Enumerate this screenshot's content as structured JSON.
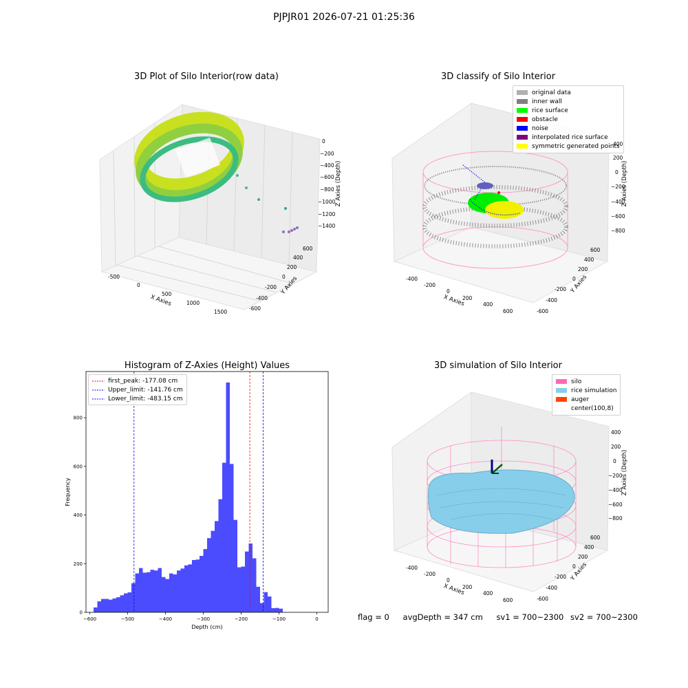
{
  "suptitle": "PJPJR01 2026-07-21 01:25:36",
  "panels": {
    "raw": {
      "title": "3D Plot of Silo Interior(row data)",
      "xlabel": "X Axies",
      "ylabel": "Y Axies",
      "zlabel": "Z Axies (Depth)",
      "xticks": [
        "-500",
        "0",
        "500",
        "1000",
        "1500"
      ],
      "yticks": [
        "-600",
        "-400",
        "-200",
        "0",
        "200",
        "400",
        "600"
      ],
      "zticks": [
        "0",
        "−200",
        "−400",
        "−600",
        "−800",
        "−1000",
        "−1200",
        "−1400"
      ]
    },
    "classify": {
      "title": "3D classify of Silo Interior",
      "xlabel": "X Axies",
      "ylabel": "Y Axies",
      "zlabel": "Z Axies (Depth)",
      "xticks": [
        "-400",
        "-200",
        "0",
        "200",
        "400",
        "600"
      ],
      "yticks": [
        "-600",
        "-400",
        "-200",
        "0",
        "200",
        "400",
        "600"
      ],
      "zticks": [
        "400",
        "200",
        "0",
        "−200",
        "−400",
        "−600",
        "−800"
      ],
      "legend": [
        {
          "label": "original data",
          "color": "#b0b0b0"
        },
        {
          "label": "inner wall",
          "color": "#808080"
        },
        {
          "label": "rice surface",
          "color": "#00ff00"
        },
        {
          "label": "obstacle",
          "color": "#ff0000"
        },
        {
          "label": "noise",
          "color": "#0000ff"
        },
        {
          "label": "interpolated rice surface",
          "color": "#800080"
        },
        {
          "label": "symmetric generated points",
          "color": "#ffff00"
        }
      ]
    },
    "simulation": {
      "title": "3D simulation of Silo Interior",
      "xlabel": "X Axies",
      "ylabel": "Y Axies",
      "zlabel": "Z Axies (Depth)",
      "xticks": [
        "-400",
        "-200",
        "0",
        "200",
        "400",
        "600"
      ],
      "yticks": [
        "-600",
        "-400",
        "-200",
        "0",
        "200",
        "400",
        "600"
      ],
      "zticks": [
        "400",
        "200",
        "0",
        "−200",
        "−400",
        "−600",
        "−800"
      ],
      "legend": [
        {
          "label": "silo",
          "color": "#ff69b4"
        },
        {
          "label": "rice simulation",
          "color": "#87ceeb"
        },
        {
          "label": "auger",
          "color": "#ff4500"
        },
        {
          "label": "center(100,8)",
          "color": "#ffffff"
        }
      ]
    }
  },
  "status": {
    "flag": "flag = 0",
    "avg_depth": "avgDepth = 347 cm",
    "sv1": "sv1 = 700~2300",
    "sv2": "sv2 = 700~2300"
  },
  "chart_data": {
    "type": "bar",
    "title": "Histogram of Z-Axies (Height) Values",
    "xlabel": "Depth (cm)",
    "ylabel": "Frequency",
    "xlim": [
      -610,
      30
    ],
    "ylim": [
      0,
      990
    ],
    "xticks": [
      -600,
      -500,
      -400,
      -300,
      -200,
      -100,
      0
    ],
    "yticks": [
      0,
      200,
      400,
      600,
      800
    ],
    "bar_color": "#0000ff",
    "bin_edges_start": -590,
    "bin_width": 10,
    "values": [
      20,
      45,
      55,
      55,
      52,
      57,
      62,
      70,
      78,
      82,
      120,
      160,
      182,
      163,
      165,
      175,
      172,
      182,
      145,
      137,
      160,
      156,
      172,
      180,
      193,
      197,
      215,
      217,
      232,
      260,
      305,
      335,
      375,
      465,
      615,
      945,
      610,
      380,
      185,
      188,
      250,
      283,
      222,
      105,
      38,
      83,
      65,
      17,
      18,
      15
    ],
    "lines": [
      {
        "label": "first_peak: -177.08 cm",
        "x": -177.08,
        "color": "#ff0000"
      },
      {
        "label": "Upper_limit: -141.76 cm",
        "x": -141.76,
        "color": "#0000ff"
      },
      {
        "label": "Lower_limit: -483.15 cm",
        "x": -483.15,
        "color": "#0000ff"
      }
    ],
    "legend_position": "upper-left"
  }
}
